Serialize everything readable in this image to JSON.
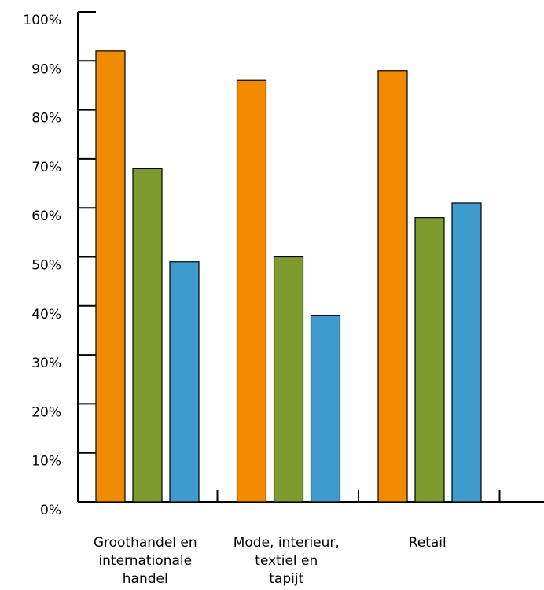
{
  "chart_data": {
    "type": "bar",
    "title": "",
    "xlabel": "",
    "ylabel": "",
    "ylim": [
      0,
      100
    ],
    "y_ticks": [
      "0%",
      "10%",
      "20%",
      "30%",
      "40%",
      "50%",
      "60%",
      "70%",
      "80%",
      "90%",
      "100%"
    ],
    "categories": [
      [
        "Groothandel en",
        "internationale",
        "handel"
      ],
      [
        "Mode, interieur,",
        "textiel en",
        "tapijt"
      ],
      [
        "Retail"
      ]
    ],
    "series": [
      {
        "color": "#F08A00",
        "values": [
          92,
          86,
          88
        ]
      },
      {
        "color": "#7F9A2F",
        "values": [
          68,
          50,
          58
        ]
      },
      {
        "color": "#3F9BCB",
        "values": [
          49,
          38,
          61
        ]
      }
    ],
    "grid": false,
    "legend": "none"
  }
}
